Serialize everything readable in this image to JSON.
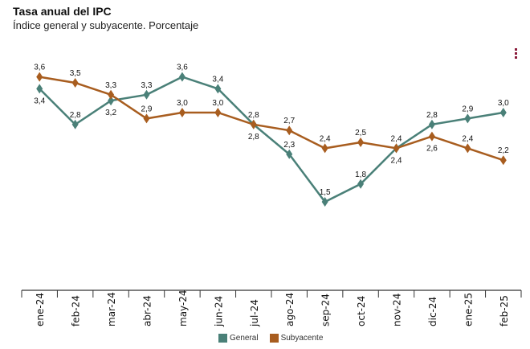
{
  "header": {
    "title": "Tasa anual del IPC",
    "subtitle": "Índice general y subyacente. Porcentaje"
  },
  "menu_icon": "kebab-menu-icon",
  "chart_data": {
    "type": "line",
    "title": "Tasa anual del IPC",
    "subtitle": "Índice general y subyacente. Porcentaje",
    "categories": [
      "ene-24",
      "feb-24",
      "mar-24",
      "abr-24",
      "may-24",
      "jun-24",
      "jul-24",
      "ago-24",
      "sep-24",
      "oct-24",
      "nov-24",
      "dic-24",
      "ene-25",
      "feb-25"
    ],
    "series": [
      {
        "name": "General",
        "color": "#4a8078",
        "values": [
          3.4,
          2.8,
          3.2,
          3.3,
          3.6,
          3.4,
          2.8,
          2.3,
          1.5,
          1.8,
          2.4,
          2.8,
          2.9,
          3.0
        ]
      },
      {
        "name": "Subyacente",
        "color": "#a85d1f",
        "values": [
          3.6,
          3.5,
          3.3,
          2.9,
          3.0,
          3.0,
          2.8,
          2.7,
          2.4,
          2.5,
          2.4,
          2.6,
          2.4,
          2.2
        ]
      }
    ],
    "labels": {
      "General": [
        "3,4",
        "2,8",
        "3,2",
        "3,3",
        "3,6",
        "3,4",
        "2,8",
        "2,3",
        "1,5",
        "1,8",
        "2,4",
        "2,8",
        "2,9",
        "3,0"
      ],
      "Subyacente": [
        "3,6",
        "3,5",
        "3,3",
        "2,9",
        "3,0",
        "3,0",
        "2,8",
        "2,7",
        "2,4",
        "2,5",
        "2,4",
        "2,6",
        "2,4",
        "2,2"
      ]
    },
    "ylim": [
      0,
      4.8
    ],
    "grid": false,
    "legend": "bottom"
  }
}
